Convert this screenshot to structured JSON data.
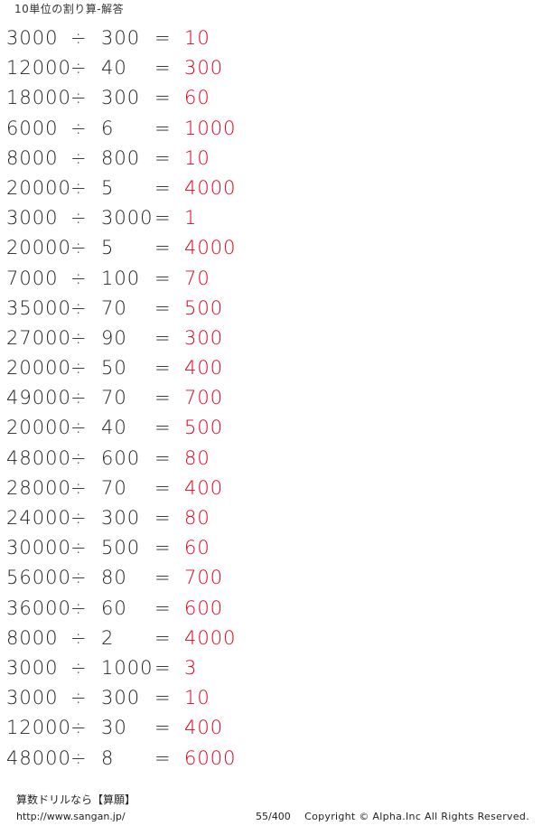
{
  "header": {
    "title": "10単位の割り算-解答"
  },
  "operator": "÷",
  "equals": "=",
  "problems": [
    {
      "dividend": "3000",
      "divisor": "300",
      "answer": "10"
    },
    {
      "dividend": "12000",
      "divisor": "40",
      "answer": "300"
    },
    {
      "dividend": "18000",
      "divisor": "300",
      "answer": "60"
    },
    {
      "dividend": "6000",
      "divisor": "6",
      "answer": "1000"
    },
    {
      "dividend": "8000",
      "divisor": "800",
      "answer": "10"
    },
    {
      "dividend": "20000",
      "divisor": "5",
      "answer": "4000"
    },
    {
      "dividend": "3000",
      "divisor": "3000",
      "answer": "1"
    },
    {
      "dividend": "20000",
      "divisor": "5",
      "answer": "4000"
    },
    {
      "dividend": "7000",
      "divisor": "100",
      "answer": "70"
    },
    {
      "dividend": "35000",
      "divisor": "70",
      "answer": "500"
    },
    {
      "dividend": "27000",
      "divisor": "90",
      "answer": "300"
    },
    {
      "dividend": "20000",
      "divisor": "50",
      "answer": "400"
    },
    {
      "dividend": "49000",
      "divisor": "70",
      "answer": "700"
    },
    {
      "dividend": "20000",
      "divisor": "40",
      "answer": "500"
    },
    {
      "dividend": "48000",
      "divisor": "600",
      "answer": "80"
    },
    {
      "dividend": "28000",
      "divisor": "70",
      "answer": "400"
    },
    {
      "dividend": "24000",
      "divisor": "300",
      "answer": "80"
    },
    {
      "dividend": "30000",
      "divisor": "500",
      "answer": "60"
    },
    {
      "dividend": "56000",
      "divisor": "80",
      "answer": "700"
    },
    {
      "dividend": "36000",
      "divisor": "60",
      "answer": "600"
    },
    {
      "dividend": "8000",
      "divisor": "2",
      "answer": "4000"
    },
    {
      "dividend": "3000",
      "divisor": "1000",
      "answer": "3"
    },
    {
      "dividend": "3000",
      "divisor": "300",
      "answer": "10"
    },
    {
      "dividend": "12000",
      "divisor": "30",
      "answer": "400"
    },
    {
      "dividend": "48000",
      "divisor": "8",
      "answer": "6000"
    }
  ],
  "colors": {
    "answer": "#e0001e",
    "text": "#222222"
  },
  "footer": {
    "brand": "算数ドリルなら【算願】",
    "url": "http://www.sangan.jp/",
    "page": "55/400",
    "copyright": "Copyright © Alpha.Inc All Rights Reserved."
  }
}
